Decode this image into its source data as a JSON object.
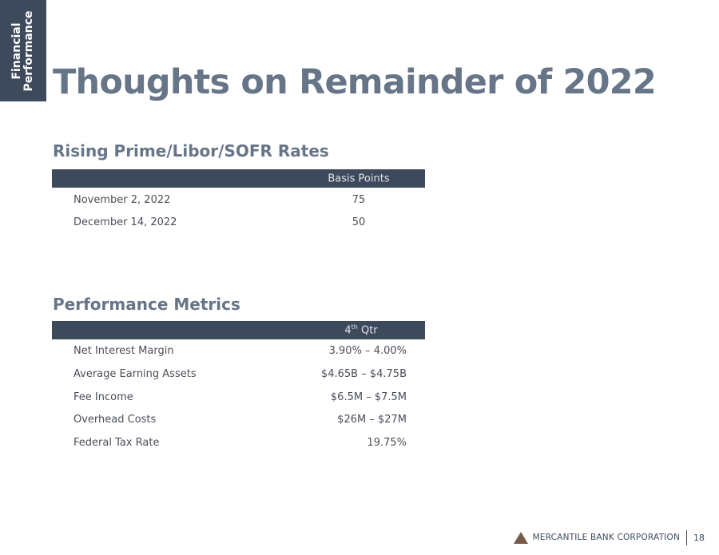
{
  "side_tab": {
    "line1": "Financial",
    "line2": "Performance"
  },
  "title": "Thoughts on Remainder of 2022",
  "rates": {
    "heading": "Rising Prime/Libor/SOFR Rates",
    "column_header": "Basis Points",
    "rows": [
      {
        "label": "November 2, 2022",
        "value": "75"
      },
      {
        "label": "December 14, 2022",
        "value": "50"
      }
    ]
  },
  "metrics": {
    "heading": "Performance Metrics",
    "column_header_prefix": "4",
    "column_header_sup": "th",
    "column_header_suffix": " Qtr",
    "rows": [
      {
        "label": "Net Interest Margin",
        "value": "3.90% – 4.00%"
      },
      {
        "label": "Average Earning Assets",
        "value": "$4.65B – $4.75B"
      },
      {
        "label": "Fee Income",
        "value": "$6.5M – $7.5M"
      },
      {
        "label": "Overhead Costs",
        "value": "$26M – $27M"
      },
      {
        "label": "Federal Tax Rate",
        "value": "19.75%"
      }
    ]
  },
  "footer": {
    "company": "MERCANTILE BANK CORPORATION",
    "page_number": "18",
    "logo_icon": "triangle-logo-icon",
    "logo_color": "#7a5a48"
  },
  "colors": {
    "navy": "#3d4a5c",
    "heading_gray": "#667587",
    "body_text": "#4a4f57"
  }
}
